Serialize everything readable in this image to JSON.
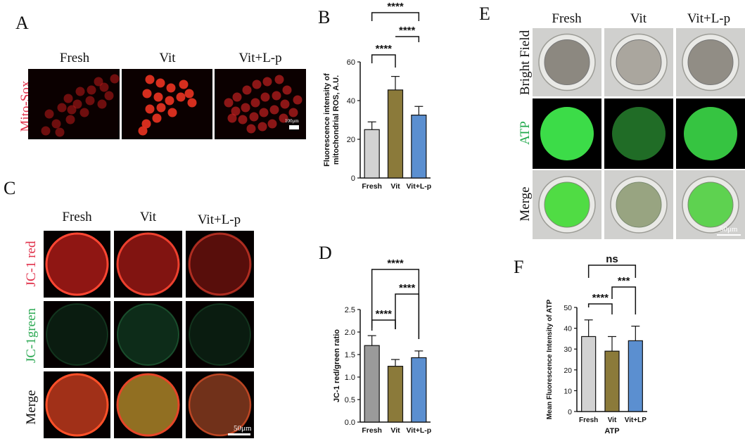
{
  "panels": {
    "A": {
      "letter": "A",
      "columns": [
        "Fresh",
        "Vit",
        "Vit+L-p"
      ],
      "row_label": "Mito-Sox",
      "scale_bar": "100μm"
    },
    "B": {
      "letter": "B"
    },
    "C": {
      "letter": "C",
      "columns": [
        "Fresh",
        "Vit",
        "Vit+L-p"
      ],
      "rows": [
        "JC-1 red",
        "JC-1green",
        "Merge"
      ],
      "scale_bar": "50μm"
    },
    "D": {
      "letter": "D"
    },
    "E": {
      "letter": "E",
      "columns": [
        "Fresh",
        "Vit",
        "Vit+L-p"
      ],
      "rows": [
        "Bright Field",
        "ATP",
        "Merge"
      ],
      "scale_bar": "50μm"
    },
    "F": {
      "letter": "F"
    }
  },
  "colors": {
    "fresh": "#d2d2d2",
    "fresh_dark": "#9a9a9a",
    "vit": "#8b7a3a",
    "vitlp": "#5b8fd0",
    "red_label": "#e0304a",
    "green_label": "#2eaa55",
    "atp_label": "#1fa84a"
  },
  "chart_data": [
    {
      "panel": "B",
      "type": "bar",
      "categories": [
        "Fresh",
        "Vit",
        "Vit+L-p"
      ],
      "values": [
        25,
        45.5,
        32.5
      ],
      "errors": [
        4,
        7,
        4.5
      ],
      "ylabel": "Fluorescence intensity of mitochondrial ROS, A.U.",
      "ylabel_lines": [
        "Fluorescence intensity of",
        "mitochondrial ROS, A.U."
      ],
      "xlabel": "",
      "ylim": [
        0,
        60
      ],
      "yticks": [
        0,
        20,
        40,
        60
      ],
      "bar_colors": [
        "#d2d2d2",
        "#8b7a3a",
        "#5b8fd0"
      ],
      "significance": [
        {
          "from": 0,
          "to": 1,
          "label": "****"
        },
        {
          "from": 1,
          "to": 2,
          "label": "****"
        },
        {
          "from": 0,
          "to": 2,
          "label": "****"
        }
      ]
    },
    {
      "panel": "D",
      "type": "bar",
      "categories": [
        "Fresh",
        "Vit",
        "Vit+L-p"
      ],
      "values": [
        1.7,
        1.24,
        1.43
      ],
      "errors": [
        0.22,
        0.15,
        0.15
      ],
      "ylabel": "JC-1 red/green ratio",
      "xlabel": "",
      "ylim": [
        0,
        2.5
      ],
      "yticks": [
        0.0,
        0.5,
        1.0,
        1.5,
        2.0,
        2.5
      ],
      "tick_decimals": 1,
      "bar_colors": [
        "#9a9a9a",
        "#8b7a3a",
        "#5b8fd0"
      ],
      "significance": [
        {
          "from": 0,
          "to": 1,
          "label": "****"
        },
        {
          "from": 1,
          "to": 2,
          "label": "****"
        },
        {
          "from": 0,
          "to": 2,
          "label": "****"
        }
      ]
    },
    {
      "panel": "F",
      "type": "bar",
      "categories": [
        "Fresh",
        "Vit",
        "Vit+LP"
      ],
      "values": [
        36,
        29,
        34
      ],
      "errors": [
        8,
        7,
        7
      ],
      "ylabel": "Mean Fluorescence Intensity of ATP",
      "xlabel": "ATP",
      "ylim": [
        0,
        50
      ],
      "yticks": [
        0,
        10,
        20,
        30,
        40,
        50
      ],
      "bar_colors": [
        "#d2d2d2",
        "#8b7a3a",
        "#5b8fd0"
      ],
      "significance": [
        {
          "from": 0,
          "to": 1,
          "label": "****"
        },
        {
          "from": 1,
          "to": 2,
          "label": "***"
        },
        {
          "from": 0,
          "to": 2,
          "label": "ns"
        }
      ]
    }
  ]
}
